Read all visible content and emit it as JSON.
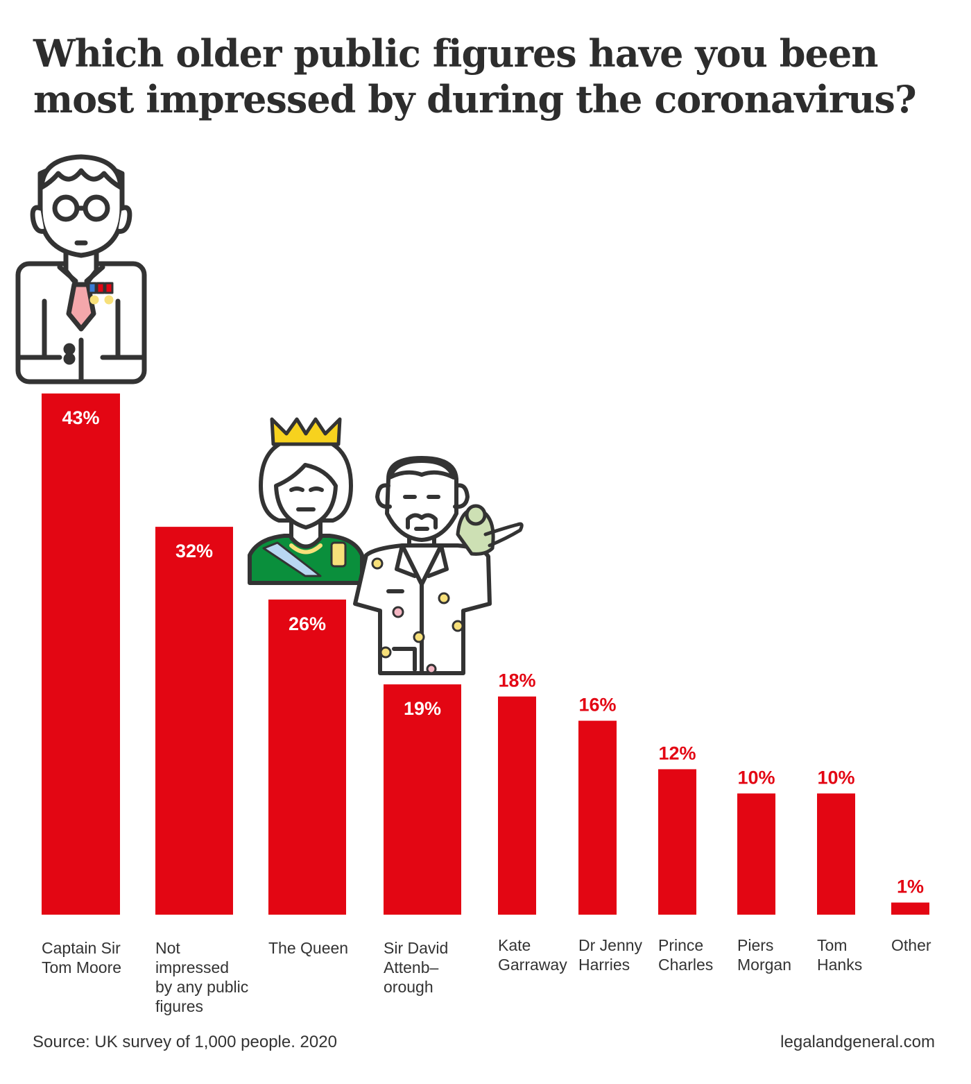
{
  "chart_data": {
    "type": "bar",
    "title": "Which older public figures have you been most impressed by during the coronavirus?",
    "categories": [
      [
        "Captain Sir",
        "Tom Moore"
      ],
      [
        "Not",
        "impressed",
        "by any public",
        "figures"
      ],
      [
        "The Queen"
      ],
      [
        "Sir David",
        "Attenb–",
        "orough"
      ],
      [
        "Kate",
        "Garraway"
      ],
      [
        "Dr Jenny",
        "Harries"
      ],
      [
        "Prince",
        "Charles"
      ],
      [
        "Piers",
        "Morgan"
      ],
      [
        "Tom",
        "Hanks"
      ],
      [
        "Other"
      ]
    ],
    "values": [
      43,
      32,
      26,
      19,
      18,
      16,
      12,
      10,
      10,
      1
    ],
    "value_labels": [
      "43%",
      "32%",
      "26%",
      "19%",
      "18%",
      "16%",
      "12%",
      "10%",
      "10%",
      "1%"
    ],
    "ylim": [
      0,
      43
    ],
    "grid": false,
    "bar_color": "#e30613"
  },
  "footer": {
    "source": "Source: UK survey of 1,000 people. 2020",
    "site": "legalandgeneral.com"
  },
  "icons": [
    "captain-tom-illustration-icon",
    "queen-illustration-icon",
    "attenborough-illustration-icon"
  ]
}
